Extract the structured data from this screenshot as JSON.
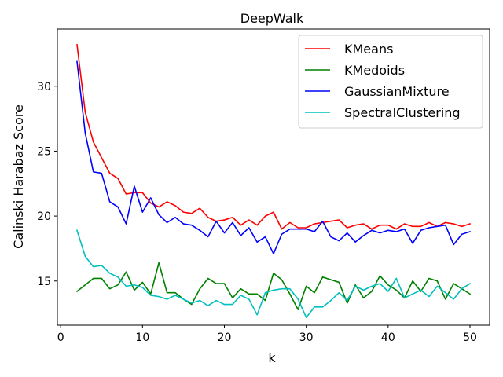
{
  "chart_data": {
    "type": "line",
    "title": "DeepWalk",
    "xlabel": "k",
    "ylabel": "Calinski Harabaz Score",
    "xlim": [
      -0.4,
      52.4
    ],
    "ylim": [
      11.6,
      34.4
    ],
    "xticks": [
      0,
      10,
      20,
      30,
      40,
      50
    ],
    "yticks": [
      15,
      20,
      25,
      30
    ],
    "grid": false,
    "legend_position": "upper right",
    "x": [
      2,
      3,
      4,
      5,
      6,
      7,
      8,
      9,
      10,
      11,
      12,
      13,
      14,
      15,
      16,
      17,
      18,
      19,
      20,
      21,
      22,
      23,
      24,
      25,
      26,
      27,
      28,
      29,
      30,
      31,
      32,
      33,
      34,
      35,
      36,
      37,
      38,
      39,
      40,
      41,
      42,
      43,
      44,
      45,
      46,
      47,
      48,
      49,
      50
    ],
    "series": [
      {
        "name": "KMeans",
        "color": "#ff0000",
        "values": [
          33.2,
          28.0,
          25.7,
          24.5,
          23.3,
          22.9,
          21.7,
          21.8,
          21.8,
          21.0,
          20.7,
          21.1,
          20.8,
          20.3,
          20.2,
          20.6,
          19.9,
          19.6,
          19.7,
          19.9,
          19.3,
          19.7,
          19.3,
          20.0,
          20.3,
          19.0,
          19.5,
          19.1,
          19.1,
          19.4,
          19.5,
          19.6,
          19.7,
          19.1,
          19.3,
          19.4,
          19.0,
          19.3,
          19.3,
          19.0,
          19.4,
          19.2,
          19.2,
          19.5,
          19.2,
          19.5,
          19.4,
          19.2,
          19.4
        ]
      },
      {
        "name": "KMedoids",
        "color": "#008000",
        "values": [
          14.2,
          14.7,
          15.2,
          15.2,
          14.4,
          14.7,
          15.7,
          14.3,
          14.9,
          14.0,
          16.4,
          14.1,
          14.1,
          13.6,
          13.2,
          14.4,
          15.2,
          14.8,
          14.8,
          13.7,
          14.4,
          14.0,
          14.0,
          13.5,
          15.6,
          15.1,
          14.0,
          12.8,
          14.6,
          14.1,
          15.3,
          15.1,
          14.9,
          13.3,
          14.7,
          13.7,
          14.2,
          15.4,
          14.7,
          14.3,
          13.7,
          15.0,
          14.2,
          15.2,
          15.0,
          13.6,
          14.8,
          14.4,
          14.0
        ]
      },
      {
        "name": "GaussianMixture",
        "color": "#0000ff",
        "values": [
          31.9,
          26.4,
          23.4,
          23.3,
          21.1,
          20.7,
          19.4,
          22.3,
          20.3,
          21.4,
          20.1,
          19.5,
          19.9,
          19.4,
          19.3,
          18.9,
          18.4,
          19.6,
          18.7,
          19.5,
          18.5,
          19.1,
          18.0,
          18.4,
          17.1,
          18.6,
          19.0,
          19.0,
          19.0,
          18.8,
          19.6,
          18.4,
          18.1,
          18.7,
          18.0,
          18.5,
          18.9,
          18.7,
          18.9,
          18.8,
          19.0,
          17.9,
          18.9,
          19.1,
          19.2,
          19.3,
          17.8,
          18.6,
          18.8
        ]
      },
      {
        "name": "SpectralClustering",
        "color": "#00bfbf",
        "values": [
          18.9,
          16.9,
          16.1,
          16.2,
          15.6,
          15.3,
          14.6,
          14.7,
          14.5,
          13.9,
          13.8,
          13.6,
          13.9,
          13.6,
          13.3,
          13.5,
          13.1,
          13.5,
          13.2,
          13.2,
          13.9,
          13.6,
          12.4,
          14.1,
          14.3,
          14.4,
          14.4,
          13.6,
          12.2,
          13.0,
          13.0,
          13.5,
          14.1,
          13.5,
          14.6,
          14.3,
          14.6,
          14.8,
          14.2,
          15.2,
          13.7,
          14.0,
          14.3,
          13.8,
          14.6,
          14.1,
          13.6,
          14.4,
          14.8
        ]
      }
    ]
  }
}
